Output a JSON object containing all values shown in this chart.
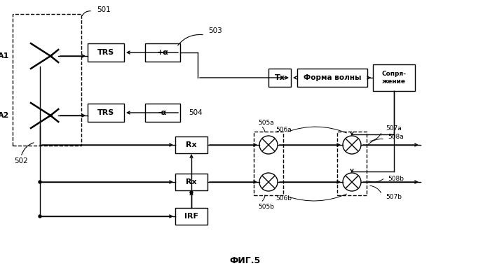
{
  "title": "ФИГ.5",
  "background": "#ffffff",
  "label_501": "501",
  "label_502": "502",
  "label_503": "503",
  "label_504": "504",
  "label_505a": "505a",
  "label_505b": "505b",
  "label_506a": "506a",
  "label_506b": "506b",
  "label_507a": "507a",
  "label_507b": "507b",
  "label_508a": "508a",
  "label_508b": "508b",
  "label_A1": "A1",
  "label_A2": "A2",
  "label_TRS": "TRS",
  "label_TRS2": "TRS",
  "label_plus_alpha": "+α",
  "label_minus_alpha": "-α",
  "label_Tx": "Tx",
  "label_forma": "Форма волны",
  "label_sopryazhenie": "Сопря-\nжение",
  "label_Rx1": "Rx",
  "label_Rx2": "Rx",
  "label_IRF": "IRF"
}
